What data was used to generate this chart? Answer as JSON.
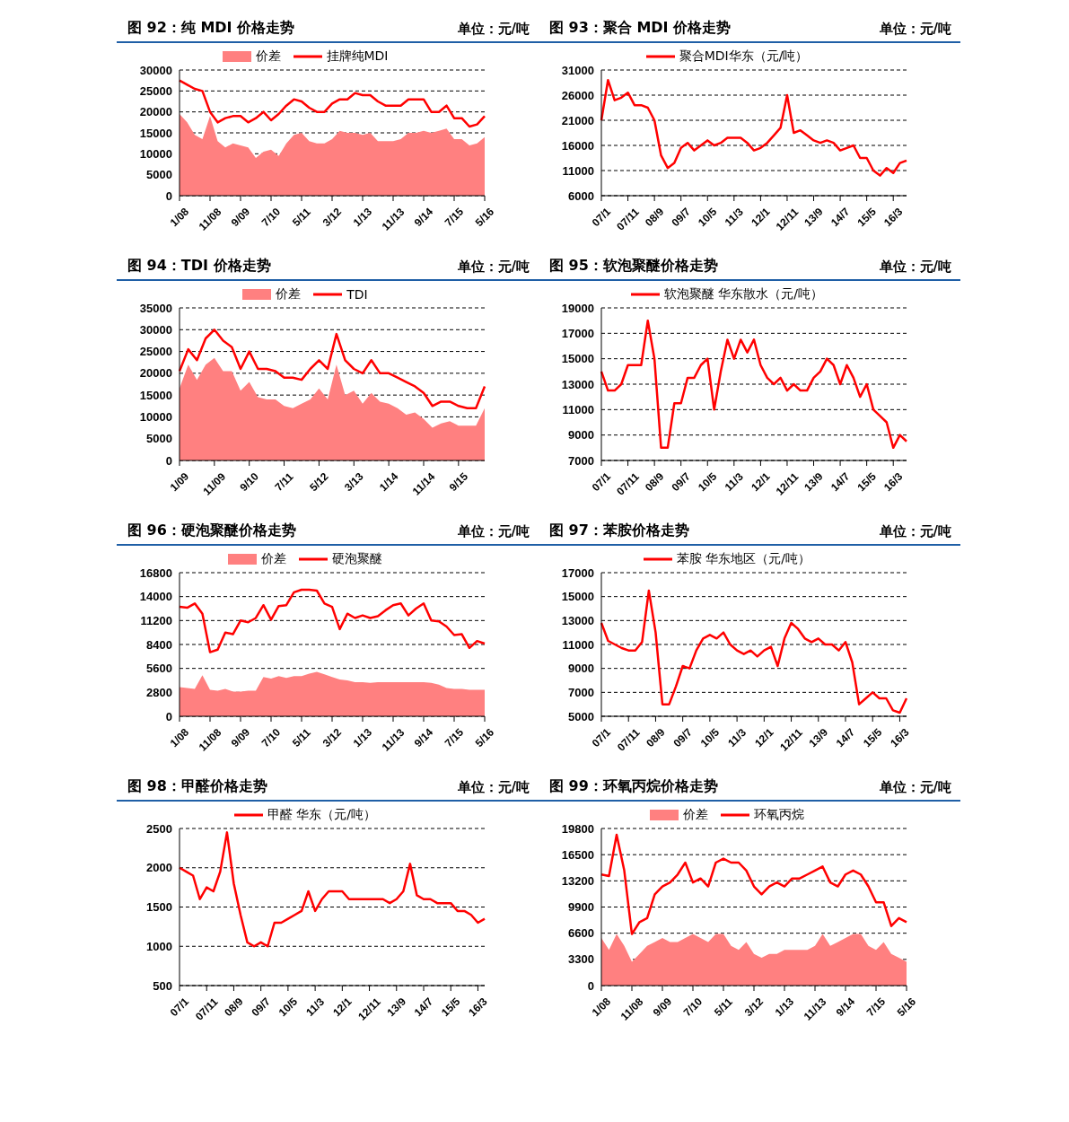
{
  "chart_data": [
    {
      "type": "line",
      "title": "图 92：纯 MDI 价格走势",
      "ylabel": "单位：元/吨",
      "legend": "top",
      "grid": "y",
      "ylim": [
        0,
        30000
      ],
      "yticks": [
        0,
        5000,
        10000,
        15000,
        20000,
        25000,
        30000
      ],
      "categories": [
        "1/08",
        null,
        null,
        null,
        "11/08",
        null,
        null,
        null,
        "9/09",
        null,
        null,
        null,
        "7/10",
        null,
        null,
        null,
        "5/11",
        null,
        null,
        null,
        "3/12",
        null,
        null,
        null,
        "1/13",
        null,
        null,
        null,
        "11/13",
        null,
        null,
        null,
        "9/14",
        null,
        null,
        null,
        "7/15",
        null,
        null,
        null,
        "5/16"
      ],
      "series": [
        {
          "name": "价差",
          "type": "area",
          "color": "#ff8080",
          "values": [
            19500,
            17500,
            14500,
            13500,
            19000,
            13000,
            11500,
            12500,
            12000,
            11500,
            9000,
            10500,
            11000,
            9500,
            12500,
            14500,
            15000,
            13000,
            12500,
            12500,
            13500,
            15500,
            15000,
            15000,
            14500,
            15000,
            13000,
            13000,
            13000,
            13500,
            15000,
            15000,
            15500,
            15000,
            15500,
            16000,
            13500,
            13500,
            12000,
            12500,
            14000
          ]
        },
        {
          "name": "挂牌纯MDI",
          "type": "line",
          "color": "#ff0000",
          "values": [
            27500,
            26500,
            25500,
            25000,
            20000,
            17500,
            18500,
            19000,
            19000,
            17500,
            18500,
            20000,
            18000,
            19500,
            21500,
            23000,
            22500,
            21000,
            20000,
            20000,
            22000,
            23000,
            23000,
            24500,
            24000,
            24000,
            22500,
            21500,
            21500,
            21500,
            23000,
            23000,
            23000,
            20000,
            20000,
            21500,
            18500,
            18500,
            16500,
            17000,
            19000
          ]
        }
      ]
    },
    {
      "type": "line",
      "title": "图 93：聚合 MDI 价格走势",
      "ylabel": "单位：元/吨",
      "legend": "top",
      "grid": "y",
      "ylim": [
        6000,
        31000
      ],
      "yticks": [
        6000,
        11000,
        16000,
        21000,
        26000,
        31000
      ],
      "categories": [
        "07/1",
        null,
        null,
        null,
        "07/11",
        null,
        null,
        null,
        "08/9",
        null,
        null,
        null,
        "09/7",
        null,
        null,
        null,
        "10/5",
        null,
        null,
        null,
        "11/3",
        null,
        null,
        null,
        "12/1",
        null,
        null,
        null,
        "12/11",
        null,
        null,
        null,
        "13/9",
        null,
        null,
        null,
        "14/7",
        null,
        null,
        null,
        "15/5",
        null,
        null,
        null,
        "16/3",
        null,
        null
      ],
      "series": [
        {
          "name": "聚合MDI华东（元/吨）",
          "type": "line",
          "color": "#ff0000",
          "values": [
            21000,
            29000,
            25000,
            25500,
            26500,
            24000,
            24000,
            23500,
            21000,
            14000,
            11500,
            12500,
            15500,
            16500,
            15000,
            16000,
            17000,
            16000,
            16500,
            17500,
            17500,
            17500,
            16500,
            15000,
            15500,
            16500,
            18000,
            19500,
            26000,
            18500,
            19000,
            18000,
            17000,
            16500,
            17000,
            16500,
            15000,
            15500,
            16000,
            13500,
            13500,
            11000,
            10000,
            11500,
            10500,
            12500,
            13000
          ]
        }
      ]
    },
    {
      "type": "line",
      "title": "图 94：TDI 价格走势",
      "ylabel": "单位：元/吨",
      "legend": "top",
      "grid": "y",
      "ylim": [
        0,
        35000
      ],
      "yticks": [
        0,
        5000,
        10000,
        15000,
        20000,
        25000,
        30000,
        35000
      ],
      "categories": [
        "1/09",
        null,
        null,
        null,
        "11/09",
        null,
        null,
        null,
        "9/10",
        null,
        null,
        null,
        "7/11",
        null,
        null,
        null,
        "5/12",
        null,
        null,
        null,
        "3/13",
        null,
        null,
        null,
        "1/14",
        null,
        null,
        null,
        "11/14",
        null,
        null,
        null,
        "9/15",
        null,
        null,
        null
      ],
      "series": [
        {
          "name": "价差",
          "type": "area",
          "color": "#ff8080",
          "values": [
            16500,
            22000,
            18500,
            22000,
            23500,
            20500,
            20500,
            16000,
            18000,
            14500,
            14000,
            14000,
            12500,
            12000,
            13000,
            14000,
            16500,
            14000,
            22000,
            15000,
            16000,
            13000,
            15500,
            13500,
            13000,
            12000,
            10500,
            11000,
            9500,
            7500,
            8500,
            9000,
            8000,
            8000,
            8000,
            12000
          ]
        },
        {
          "name": "TDI",
          "type": "line",
          "color": "#ff0000",
          "values": [
            20500,
            25500,
            23000,
            28000,
            30000,
            27500,
            26000,
            21000,
            25000,
            21000,
            21000,
            20500,
            19000,
            19000,
            18500,
            21000,
            23000,
            21000,
            29000,
            23000,
            21000,
            20000,
            23000,
            20000,
            20000,
            19000,
            18000,
            17000,
            15500,
            12500,
            13500,
            13500,
            12500,
            12000,
            12000,
            17000
          ]
        }
      ]
    },
    {
      "type": "line",
      "title": "图 95：软泡聚醚价格走势",
      "ylabel": "单位：元/吨",
      "legend": "top",
      "grid": "y",
      "ylim": [
        7000,
        19000
      ],
      "yticks": [
        7000,
        9000,
        11000,
        13000,
        15000,
        17000,
        19000
      ],
      "categories": [
        "07/1",
        null,
        null,
        null,
        "07/11",
        null,
        null,
        null,
        "08/9",
        null,
        null,
        null,
        "09/7",
        null,
        null,
        null,
        "10/5",
        null,
        null,
        null,
        "11/3",
        null,
        null,
        null,
        "12/1",
        null,
        null,
        null,
        "12/11",
        null,
        null,
        null,
        "13/9",
        null,
        null,
        null,
        "14/7",
        null,
        null,
        null,
        "15/5",
        null,
        null,
        null,
        "16/3",
        null,
        null
      ],
      "series": [
        {
          "name": "软泡聚醚 华东散水（元/吨）",
          "type": "line",
          "color": "#ff0000",
          "values": [
            14000,
            12500,
            12500,
            13000,
            14500,
            14500,
            14500,
            18000,
            15000,
            8000,
            8000,
            11500,
            11500,
            13500,
            13500,
            14500,
            15000,
            11000,
            14000,
            16500,
            15000,
            16500,
            15500,
            16500,
            14500,
            13500,
            13000,
            13500,
            12500,
            13000,
            12500,
            12500,
            13500,
            14000,
            15000,
            14500,
            13000,
            14500,
            13500,
            12000,
            13000,
            11000,
            10500,
            10000,
            8000,
            9000,
            8500
          ]
        }
      ]
    },
    {
      "type": "line",
      "title": "图 96：硬泡聚醚价格走势",
      "ylabel": "单位：元/吨",
      "legend": "top",
      "grid": "y",
      "ylim": [
        0,
        16800
      ],
      "yticks": [
        0,
        2800,
        5600,
        8400,
        11200,
        14000,
        16800
      ],
      "categories": [
        "1/08",
        null,
        null,
        null,
        "11/08",
        null,
        null,
        null,
        "9/09",
        null,
        null,
        null,
        "7/10",
        null,
        null,
        null,
        "5/11",
        null,
        null,
        null,
        "3/12",
        null,
        null,
        null,
        "1/13",
        null,
        null,
        null,
        "11/13",
        null,
        null,
        null,
        "9/14",
        null,
        null,
        null,
        "7/15",
        null,
        null,
        null,
        "5/16"
      ],
      "series": [
        {
          "name": "价差",
          "type": "area",
          "color": "#ff8080",
          "values": [
            3400,
            3300,
            3200,
            4800,
            3100,
            3000,
            3200,
            2900,
            2900,
            3000,
            3000,
            4600,
            4400,
            4700,
            4500,
            4700,
            4700,
            5000,
            5200,
            4900,
            4600,
            4300,
            4200,
            4000,
            4000,
            3900,
            4000,
            4000,
            4000,
            4000,
            4000,
            4000,
            4000,
            3900,
            3700,
            3300,
            3200,
            3200,
            3100,
            3100,
            3100
          ]
        },
        {
          "name": "硬泡聚醚",
          "type": "line",
          "color": "#ff0000",
          "values": [
            12800,
            12700,
            13200,
            12000,
            7500,
            7800,
            9800,
            9600,
            11200,
            11000,
            11500,
            13000,
            11300,
            12900,
            13000,
            14500,
            14800,
            14800,
            14700,
            13200,
            12800,
            10200,
            12000,
            11500,
            11800,
            11500,
            11700,
            12400,
            13000,
            13200,
            11800,
            12600,
            13200,
            11200,
            11100,
            10500,
            9500,
            9600,
            8000,
            8800,
            8500
          ]
        }
      ]
    },
    {
      "type": "line",
      "title": "图 97：苯胺价格走势",
      "ylabel": "单位：元/吨",
      "legend": "top",
      "grid": "y",
      "ylim": [
        5000,
        17000
      ],
      "yticks": [
        5000,
        7000,
        9000,
        11000,
        13000,
        15000,
        17000
      ],
      "categories": [
        "07/1",
        null,
        null,
        null,
        "07/11",
        null,
        null,
        null,
        "08/9",
        null,
        null,
        null,
        "09/7",
        null,
        null,
        null,
        "10/5",
        null,
        null,
        null,
        "11/3",
        null,
        null,
        null,
        "12/1",
        null,
        null,
        null,
        "12/11",
        null,
        null,
        null,
        "13/9",
        null,
        null,
        null,
        "14/7",
        null,
        null,
        null,
        "15/5",
        null,
        null,
        null,
        "16/3",
        null
      ],
      "series": [
        {
          "name": "苯胺 华东地区（元/吨）",
          "type": "line",
          "color": "#ff0000",
          "values": [
            12800,
            11300,
            11000,
            10700,
            10500,
            10500,
            11200,
            15500,
            12000,
            6000,
            6000,
            7500,
            9200,
            9000,
            10500,
            11500,
            11800,
            11500,
            12000,
            11000,
            10500,
            10200,
            10500,
            10000,
            10500,
            10800,
            9200,
            11500,
            12800,
            12300,
            11500,
            11200,
            11500,
            11000,
            11000,
            10500,
            11200,
            9500,
            6000,
            6500,
            7000,
            6500,
            6500,
            5500,
            5300,
            6500
          ]
        }
      ]
    },
    {
      "type": "line",
      "title": "图 98：甲醛价格走势",
      "ylabel": "单位：元/吨",
      "legend": "top",
      "grid": "y",
      "ylim": [
        500,
        2500
      ],
      "yticks": [
        500,
        1000,
        1500,
        2000,
        2500
      ],
      "categories": [
        "07/1",
        null,
        null,
        null,
        "07/11",
        null,
        null,
        null,
        "08/9",
        null,
        null,
        null,
        "09/7",
        null,
        null,
        null,
        "10/5",
        null,
        null,
        null,
        "11/3",
        null,
        null,
        null,
        "12/1",
        null,
        null,
        null,
        "12/11",
        null,
        null,
        null,
        "13/9",
        null,
        null,
        null,
        "14/7",
        null,
        null,
        null,
        "15/5",
        null,
        null,
        null,
        "16/3",
        null
      ],
      "series": [
        {
          "name": "甲醛 华东（元/吨）",
          "type": "line",
          "color": "#ff0000",
          "values": [
            2000,
            1950,
            1900,
            1600,
            1750,
            1700,
            1950,
            2450,
            1800,
            1400,
            1050,
            1000,
            1050,
            1000,
            1300,
            1300,
            1350,
            1400,
            1450,
            1700,
            1450,
            1600,
            1700,
            1700,
            1700,
            1600,
            1600,
            1600,
            1600,
            1600,
            1600,
            1550,
            1600,
            1700,
            2050,
            1650,
            1600,
            1600,
            1550,
            1550,
            1550,
            1450,
            1450,
            1400,
            1300,
            1350
          ]
        }
      ]
    },
    {
      "type": "line",
      "title": "图 99：环氧丙烷价格走势",
      "ylabel": "单位：元/吨",
      "legend": "top",
      "grid": "y",
      "ylim": [
        0,
        19800
      ],
      "yticks": [
        0,
        3300,
        6600,
        9900,
        13200,
        16500,
        19800
      ],
      "categories": [
        "1/08",
        null,
        null,
        null,
        "11/08",
        null,
        null,
        null,
        "9/09",
        null,
        null,
        null,
        "7/10",
        null,
        null,
        null,
        "5/11",
        null,
        null,
        null,
        "3/12",
        null,
        null,
        null,
        "1/13",
        null,
        null,
        null,
        "11/13",
        null,
        null,
        null,
        "9/14",
        null,
        null,
        null,
        "7/15",
        null,
        null,
        null,
        "5/16"
      ],
      "series": [
        {
          "name": "价差",
          "type": "area",
          "color": "#ff8080",
          "values": [
            6000,
            4500,
            6500,
            5000,
            3000,
            4000,
            5000,
            5500,
            6000,
            5500,
            5500,
            6000,
            6500,
            6000,
            5500,
            6500,
            6500,
            5000,
            4500,
            5500,
            4000,
            3500,
            4000,
            4000,
            4500,
            4500,
            4500,
            4500,
            5000,
            6500,
            5000,
            5500,
            6000,
            6500,
            6500,
            5000,
            4500,
            5500,
            4000,
            3500,
            3000
          ]
        },
        {
          "name": "环氧丙烷",
          "type": "line",
          "color": "#ff0000",
          "values": [
            14000,
            13800,
            19000,
            14500,
            6500,
            8000,
            8500,
            11500,
            12500,
            13000,
            14000,
            15500,
            13000,
            13500,
            12500,
            15500,
            16000,
            15500,
            15500,
            14500,
            12500,
            11500,
            12500,
            13000,
            12500,
            13500,
            13500,
            14000,
            14500,
            15000,
            13000,
            12500,
            14000,
            14500,
            14000,
            12500,
            10500,
            10500,
            7500,
            8500,
            8000
          ]
        }
      ]
    }
  ]
}
